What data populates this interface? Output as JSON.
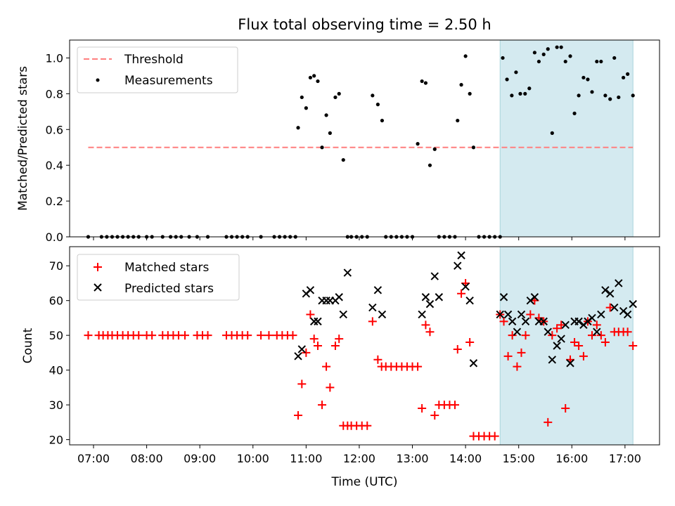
{
  "chart_data": [
    {
      "type": "scatter",
      "title": "Flux total observing time = 2.50 h",
      "xlabel": "",
      "ylabel": "Matched/Predicted stars",
      "xlim": [
        6.55,
        17.65
      ],
      "ylim": [
        0,
        1.1
      ],
      "yticks": [
        0.0,
        0.2,
        0.4,
        0.6,
        0.8,
        1.0
      ],
      "ytick_labels": [
        "0.0",
        "0.2",
        "0.4",
        "0.6",
        "0.8",
        "1.0"
      ],
      "legend_position": "top-left",
      "highlight_span": {
        "x0": 14.65,
        "x1": 17.15,
        "color": "#d4eaf0"
      },
      "series": [
        {
          "name": "Threshold",
          "kind": "dashed-line",
          "color": "#ff7f7f",
          "x": [
            6.9,
            17.15
          ],
          "y": [
            0.5,
            0.5
          ]
        },
        {
          "name": "Measurements",
          "kind": "dot",
          "color": "#000000",
          "x": [
            6.9,
            7.15,
            7.25,
            7.35,
            7.45,
            7.55,
            7.65,
            7.75,
            7.85,
            8.0,
            8.1,
            8.3,
            8.45,
            8.55,
            8.65,
            8.8,
            8.95,
            9.15,
            9.5,
            9.6,
            9.7,
            9.8,
            9.9,
            10.15,
            10.4,
            10.5,
            10.6,
            10.7,
            10.8,
            10.85,
            10.92,
            11.0,
            11.08,
            11.15,
            11.22,
            11.3,
            11.38,
            11.45,
            11.55,
            11.62,
            11.7,
            11.78,
            11.85,
            11.95,
            12.05,
            12.15,
            12.25,
            12.35,
            12.43,
            12.5,
            12.6,
            12.7,
            12.8,
            12.9,
            13.0,
            13.1,
            13.18,
            13.25,
            13.33,
            13.42,
            13.5,
            13.6,
            13.7,
            13.8,
            13.85,
            13.92,
            14.0,
            14.08,
            14.15,
            14.25,
            14.35,
            14.45,
            14.55,
            14.65,
            14.7,
            14.78,
            14.87,
            14.95,
            15.03,
            15.12,
            15.2,
            15.3,
            15.38,
            15.47,
            15.55,
            15.63,
            15.72,
            15.8,
            15.88,
            15.97,
            16.05,
            16.13,
            16.22,
            16.3,
            16.38,
            16.47,
            16.55,
            16.63,
            16.72,
            16.8,
            16.88,
            16.97,
            17.05,
            17.15
          ],
          "y": [
            0,
            0,
            0,
            0,
            0,
            0,
            0,
            0,
            0,
            0,
            0,
            0,
            0,
            0,
            0,
            0,
            0,
            0,
            0,
            0,
            0,
            0,
            0,
            0,
            0,
            0,
            0,
            0,
            0,
            0.61,
            0.78,
            0.72,
            0.89,
            0.9,
            0.87,
            0.5,
            0.68,
            0.58,
            0.78,
            0.8,
            0.43,
            0,
            0,
            0,
            0,
            0,
            0.79,
            0.74,
            0.65,
            0,
            0,
            0,
            0,
            0,
            0,
            0.52,
            0.87,
            0.86,
            0.4,
            0.49,
            0,
            0,
            0,
            0,
            0.65,
            0.85,
            1.01,
            0.8,
            0.5,
            0,
            0,
            0,
            0,
            0,
            1.0,
            0.88,
            0.79,
            0.92,
            0.8,
            0.8,
            0.83,
            1.03,
            0.98,
            1.02,
            1.05,
            0.58,
            1.06,
            1.06,
            0.98,
            1.01,
            0.69,
            0.79,
            0.89,
            0.88,
            0.81,
            0.98,
            0.98,
            0.79,
            0.77,
            1.0,
            0.78,
            0.89,
            0.91,
            0.79
          ]
        }
      ]
    },
    {
      "type": "scatter",
      "title": "",
      "xlabel": "Time (UTC)",
      "ylabel": "Count",
      "xlim": [
        6.55,
        17.65
      ],
      "ylim": [
        18.5,
        75.5
      ],
      "yticks": [
        20,
        30,
        40,
        50,
        60,
        70
      ],
      "ytick_labels": [
        "20",
        "30",
        "40",
        "50",
        "60",
        "70"
      ],
      "xticks": [
        7,
        8,
        9,
        10,
        11,
        12,
        13,
        14,
        15,
        16,
        17
      ],
      "xtick_labels": [
        "07:00",
        "08:00",
        "09:00",
        "10:00",
        "11:00",
        "12:00",
        "13:00",
        "14:00",
        "15:00",
        "16:00",
        "17:00"
      ],
      "legend_position": "top-left",
      "highlight_span": {
        "x0": 14.65,
        "x1": 17.15,
        "color": "#d4eaf0"
      },
      "series": [
        {
          "name": "Matched stars",
          "marker": "plus",
          "color": "#ff0000",
          "x": [
            6.9,
            7.1,
            7.18,
            7.27,
            7.35,
            7.45,
            7.55,
            7.65,
            7.75,
            7.85,
            8.0,
            8.1,
            8.3,
            8.4,
            8.5,
            8.6,
            8.72,
            8.95,
            9.05,
            9.15,
            9.5,
            9.6,
            9.7,
            9.8,
            9.9,
            10.15,
            10.3,
            10.45,
            10.55,
            10.65,
            10.75,
            10.85,
            10.92,
            11.0,
            11.08,
            11.15,
            11.22,
            11.3,
            11.38,
            11.45,
            11.55,
            11.62,
            11.7,
            11.78,
            11.85,
            11.95,
            12.05,
            12.15,
            12.25,
            12.35,
            12.42,
            12.5,
            12.6,
            12.7,
            12.8,
            12.9,
            13.0,
            13.1,
            13.18,
            13.25,
            13.33,
            13.42,
            13.5,
            13.6,
            13.7,
            13.8,
            13.85,
            13.92,
            14.0,
            14.08,
            14.15,
            14.25,
            14.35,
            14.45,
            14.55,
            14.65,
            14.72,
            14.8,
            14.88,
            14.97,
            15.05,
            15.13,
            15.22,
            15.3,
            15.38,
            15.47,
            15.55,
            15.63,
            15.72,
            15.8,
            15.88,
            15.97,
            16.05,
            16.13,
            16.22,
            16.3,
            16.38,
            16.47,
            16.55,
            16.63,
            16.72,
            16.8,
            16.88,
            16.97,
            17.05,
            17.15
          ],
          "y": [
            50,
            50,
            50,
            50,
            50,
            50,
            50,
            50,
            50,
            50,
            50,
            50,
            50,
            50,
            50,
            50,
            50,
            50,
            50,
            50,
            50,
            50,
            50,
            50,
            50,
            50,
            50,
            50,
            50,
            50,
            50,
            27,
            36,
            45,
            56,
            49,
            47,
            30,
            41,
            35,
            47,
            49,
            24,
            24,
            24,
            24,
            24,
            24,
            54,
            43,
            41,
            41,
            41,
            41,
            41,
            41,
            41,
            41,
            29,
            53,
            51,
            27,
            30,
            30,
            30,
            30,
            46,
            62,
            65,
            48,
            21,
            21,
            21,
            21,
            21,
            56,
            54,
            44,
            50,
            41,
            45,
            50,
            56,
            60,
            55,
            54,
            25,
            50,
            52,
            53,
            29,
            43,
            48,
            47,
            44,
            54,
            50,
            53,
            50,
            48,
            58,
            51,
            51,
            51,
            51,
            47
          ]
        },
        {
          "name": "Predicted stars",
          "marker": "x",
          "color": "#000000",
          "x": [
            10.85,
            10.92,
            11.0,
            11.08,
            11.15,
            11.22,
            11.3,
            11.38,
            11.45,
            11.55,
            11.62,
            11.7,
            11.78,
            12.25,
            12.35,
            12.43,
            13.18,
            13.25,
            13.33,
            13.42,
            13.5,
            13.85,
            13.92,
            14.0,
            14.08,
            14.15,
            14.65,
            14.72,
            14.8,
            14.88,
            14.97,
            15.05,
            15.13,
            15.22,
            15.3,
            15.38,
            15.47,
            15.55,
            15.63,
            15.72,
            15.8,
            15.88,
            15.97,
            16.05,
            16.13,
            16.22,
            16.3,
            16.38,
            16.47,
            16.55,
            16.63,
            16.72,
            16.8,
            16.88,
            16.97,
            17.05,
            17.15
          ],
          "y": [
            44,
            46,
            62,
            63,
            54,
            54,
            60,
            60,
            60,
            60,
            61,
            56,
            68,
            58,
            63,
            56,
            56,
            61,
            59,
            67,
            61,
            70,
            73,
            64,
            60,
            42,
            56,
            61,
            56,
            54,
            51,
            56,
            54,
            60,
            61,
            54,
            54,
            51,
            43,
            47,
            49,
            53,
            42,
            54,
            54,
            53,
            54,
            55,
            51,
            56,
            63,
            62,
            58,
            65,
            57,
            56,
            59
          ]
        }
      ]
    }
  ]
}
